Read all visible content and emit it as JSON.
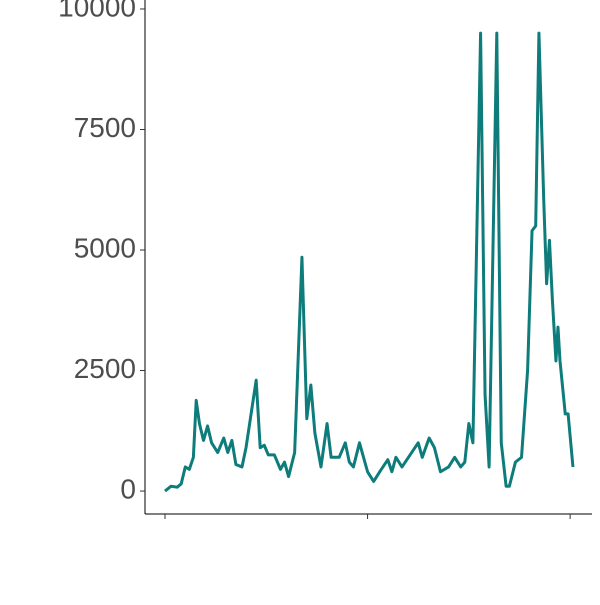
{
  "chart_data": {
    "type": "line",
    "x": [
      0,
      1.5,
      3,
      4,
      5,
      6,
      7,
      7.7,
      8.5,
      9.5,
      10.5,
      11.5,
      13,
      14.5,
      15.5,
      16.5,
      17.5,
      19,
      20,
      22.5,
      23.5,
      24.5,
      25.5,
      27,
      28.5,
      29.5,
      30.5,
      32,
      33.8,
      35,
      36,
      37,
      38.5,
      40,
      41,
      43,
      44.5,
      45.5,
      46.5,
      48,
      49,
      50,
      51.5,
      53,
      55,
      56,
      57,
      58.5,
      62.5,
      63.5,
      65.2,
      66.5,
      68,
      70,
      71.5,
      73,
      74,
      75,
      76,
      77.9,
      79,
      80,
      81.9,
      83,
      84.2,
      85,
      86.5,
      88,
      89.5,
      90.6,
      91.5,
      92.3,
      93.5,
      94.2,
      94.9,
      95.6,
      96.5,
      97,
      97.5,
      98.8,
      99.5,
      100.7
    ],
    "series": [
      {
        "color": "#0e7c7b",
        "values": [
          0,
          100,
          80,
          150,
          500,
          450,
          700,
          1880,
          1400,
          1050,
          1350,
          1000,
          800,
          1100,
          800,
          1050,
          550,
          500,
          900,
          2300,
          900,
          950,
          750,
          750,
          450,
          600,
          300,
          800,
          4850,
          1500,
          2200,
          1200,
          500,
          1400,
          700,
          700,
          1000,
          600,
          500,
          1000,
          700,
          400,
          200,
          400,
          650,
          400,
          700,
          500,
          1000,
          700,
          1100,
          900,
          400,
          500,
          700,
          500,
          600,
          1400,
          1000,
          9500,
          2000,
          500,
          9500,
          1000,
          100,
          100,
          600,
          700,
          2500,
          5400,
          5500,
          9500,
          6000,
          4300,
          5200,
          4000,
          2700,
          3400,
          2700,
          1600,
          1600,
          500
        ]
      }
    ],
    "xlim": [
      -4.94,
      105.4
    ],
    "xticks": [
      0,
      50,
      100
    ],
    "ylim": [
      -476,
      10186
    ],
    "yticks": [
      0,
      2500,
      5000,
      7500,
      10000
    ]
  }
}
